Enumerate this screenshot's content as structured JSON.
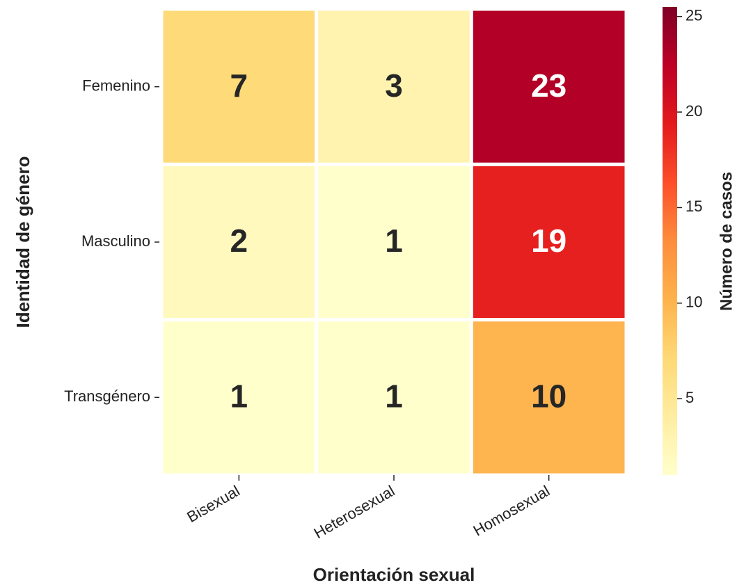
{
  "chart_data": {
    "type": "heatmap",
    "x_label": "Orientación sexual",
    "y_label": "Identidad de género",
    "x_categories": [
      "Bisexual",
      "Heterosexual",
      "Homosexual"
    ],
    "y_categories": [
      "Femenino",
      "Masculino",
      "Transgénero"
    ],
    "values": [
      [
        7,
        3,
        23
      ],
      [
        2,
        1,
        19
      ],
      [
        1,
        1,
        10
      ]
    ],
    "colorbar_label": "Número de casos",
    "clim": [
      1,
      25.5
    ],
    "cticks": [
      5,
      10,
      15,
      20,
      25
    ],
    "colormap": [
      "#ffffcc",
      "#ffeda0",
      "#fed976",
      "#feb24c",
      "#fd8d3c",
      "#fc4e2a",
      "#e31a1c",
      "#bd0026",
      "#800026"
    ]
  }
}
